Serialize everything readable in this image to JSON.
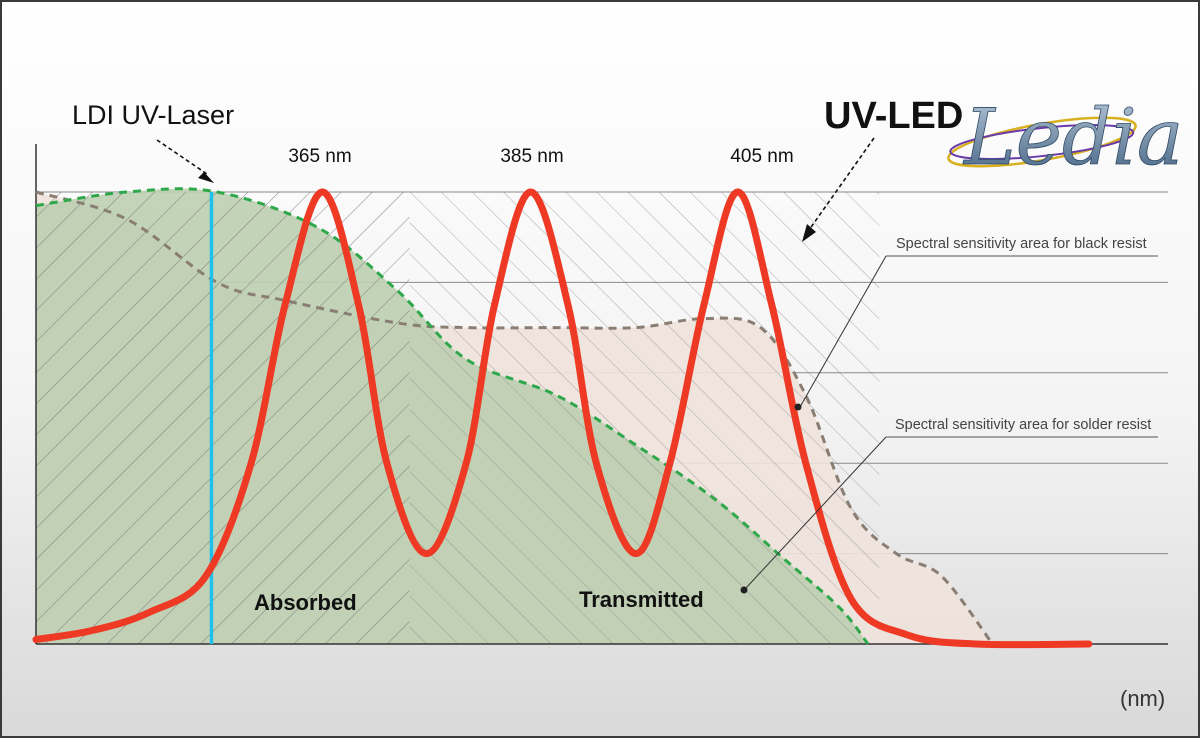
{
  "chart_data": {
    "type": "line",
    "x_unit_label": "(nm)",
    "peak_labels": [
      "365 nm",
      "385 nm",
      "405 nm"
    ],
    "series": [
      {
        "name": "UV-LED",
        "color": "#ee3a24",
        "points": [
          [
            0,
            0.01
          ],
          [
            0.05,
            0.03
          ],
          [
            0.1,
            0.07
          ],
          [
            0.15,
            0.15
          ],
          [
            0.19,
            0.4
          ],
          [
            0.22,
            0.75
          ],
          [
            0.253,
            1.0
          ],
          [
            0.285,
            0.75
          ],
          [
            0.31,
            0.4
          ],
          [
            0.345,
            0.2
          ],
          [
            0.38,
            0.4
          ],
          [
            0.405,
            0.75
          ],
          [
            0.437,
            1.0
          ],
          [
            0.47,
            0.75
          ],
          [
            0.495,
            0.4
          ],
          [
            0.53,
            0.2
          ],
          [
            0.56,
            0.4
          ],
          [
            0.59,
            0.75
          ],
          [
            0.62,
            1.0
          ],
          [
            0.65,
            0.75
          ],
          [
            0.68,
            0.4
          ],
          [
            0.72,
            0.1
          ],
          [
            0.77,
            0.02
          ],
          [
            0.83,
            0.0
          ],
          [
            0.93,
            0.0
          ]
        ]
      },
      {
        "name": "Spectral sensitivity area for solder resist",
        "color": "#2ea84a",
        "points": [
          [
            0,
            0.97
          ],
          [
            0.08,
            1.0
          ],
          [
            0.16,
            1.0
          ],
          [
            0.25,
            0.92
          ],
          [
            0.32,
            0.78
          ],
          [
            0.38,
            0.63
          ],
          [
            0.46,
            0.55
          ],
          [
            0.53,
            0.44
          ],
          [
            0.6,
            0.32
          ],
          [
            0.66,
            0.19
          ],
          [
            0.71,
            0.08
          ],
          [
            0.735,
            0.0
          ]
        ]
      },
      {
        "name": "Spectral sensitivity area for black resist",
        "color": "#8a7e73",
        "points": [
          [
            0,
            1.0
          ],
          [
            0.08,
            0.94
          ],
          [
            0.16,
            0.8
          ],
          [
            0.22,
            0.76
          ],
          [
            0.32,
            0.71
          ],
          [
            0.38,
            0.7
          ],
          [
            0.46,
            0.7
          ],
          [
            0.53,
            0.7
          ],
          [
            0.59,
            0.72
          ],
          [
            0.64,
            0.7
          ],
          [
            0.68,
            0.55
          ],
          [
            0.72,
            0.3
          ],
          [
            0.76,
            0.2
          ],
          [
            0.8,
            0.15
          ],
          [
            0.845,
            0.0
          ]
        ]
      }
    ],
    "laser_line": {
      "name": "LDI UV-Laser",
      "x": 0.155,
      "color": "#1fc0ea"
    },
    "region_labels": [
      "Absorbed",
      "Transmitted"
    ],
    "annotations": [
      "LDI UV-Laser",
      "UV-LED",
      "Spectral sensitivity area for black resist",
      "Spectral sensitivity area for solder resist"
    ],
    "grid": true,
    "legend": "none"
  },
  "logo": {
    "text": "Ledia"
  }
}
